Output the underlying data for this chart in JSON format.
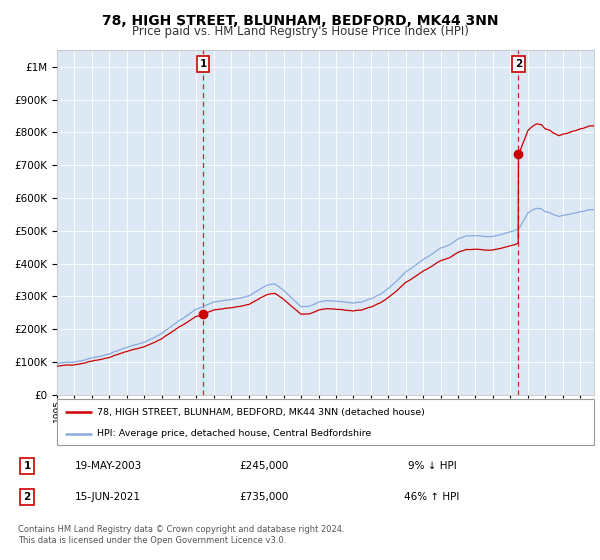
{
  "title": "78, HIGH STREET, BLUNHAM, BEDFORD, MK44 3NN",
  "subtitle": "Price paid vs. HM Land Registry's House Price Index (HPI)",
  "title_fontsize": 10,
  "subtitle_fontsize": 8.5,
  "background_color": "#dce9f5",
  "plot_bg_color": "#dce9f5",
  "legend_label_red": "78, HIGH STREET, BLUNHAM, BEDFORD, MK44 3NN (detached house)",
  "legend_label_blue": "HPI: Average price, detached house, Central Bedfordshire",
  "sale1_date": 2003.38,
  "sale1_price": 245000,
  "sale1_label": "1",
  "sale2_date": 2021.46,
  "sale2_price": 735000,
  "sale2_label": "2",
  "footer_line1": "Contains HM Land Registry data © Crown copyright and database right 2024.",
  "footer_line2": "This data is licensed under the Open Government Licence v3.0.",
  "table": [
    {
      "num": "1",
      "date": "19-MAY-2003",
      "price": "£245,000",
      "pct": "9% ↓ HPI"
    },
    {
      "num": "2",
      "date": "15-JUN-2021",
      "price": "£735,000",
      "pct": "46% ↑ HPI"
    }
  ],
  "ylim": [
    0,
    1050000
  ],
  "xlim_start": 1995.0,
  "xlim_end": 2025.8,
  "red_color": "#cc0000",
  "blue_color": "#88aadd",
  "dashed_color": "#cc0000",
  "hpi_points": {
    "1995.0": 95000,
    "1996.0": 100000,
    "1997.0": 112000,
    "1998.0": 125000,
    "1999.0": 145000,
    "2000.0": 162000,
    "2001.0": 190000,
    "2002.0": 228000,
    "2003.0": 262000,
    "2003.4": 270000,
    "2004.0": 285000,
    "2005.0": 292000,
    "2006.0": 302000,
    "2007.0": 335000,
    "2007.5": 340000,
    "2008.0": 320000,
    "2008.5": 295000,
    "2009.0": 270000,
    "2009.5": 272000,
    "2010.0": 283000,
    "2010.5": 288000,
    "2011.0": 285000,
    "2011.5": 282000,
    "2012.0": 280000,
    "2012.5": 283000,
    "2013.0": 292000,
    "2013.5": 305000,
    "2014.0": 325000,
    "2014.5": 348000,
    "2015.0": 375000,
    "2015.5": 395000,
    "2016.0": 415000,
    "2016.5": 430000,
    "2017.0": 448000,
    "2017.5": 460000,
    "2018.0": 480000,
    "2018.5": 490000,
    "2019.0": 492000,
    "2019.5": 488000,
    "2020.0": 485000,
    "2020.5": 492000,
    "2021.0": 500000,
    "2021.3": 505000,
    "2021.5": 510000,
    "2022.0": 558000,
    "2022.3": 568000,
    "2022.5": 572000,
    "2022.8": 570000,
    "2023.0": 562000,
    "2023.3": 558000,
    "2023.5": 552000,
    "2023.8": 548000,
    "2024.0": 550000,
    "2024.3": 553000,
    "2024.5": 556000,
    "2024.8": 558000,
    "2025.0": 560000,
    "2025.5": 565000,
    "2025.8": 566000
  }
}
